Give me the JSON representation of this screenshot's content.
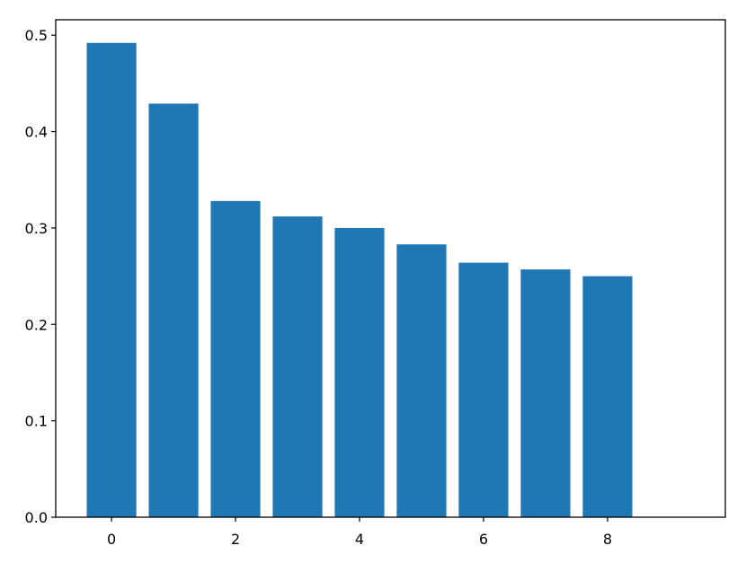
{
  "chart_data": {
    "type": "bar",
    "x": [
      0,
      1,
      2,
      3,
      4,
      5,
      6,
      7,
      8
    ],
    "values": [
      0.492,
      0.429,
      0.328,
      0.312,
      0.3,
      0.283,
      0.264,
      0.257,
      0.25
    ],
    "color": "#1f77b4",
    "xlim": [
      -0.9,
      9.9
    ],
    "xticks": [
      0,
      2,
      4,
      6,
      8
    ],
    "ylim": [
      0,
      0.516
    ],
    "yticks": [
      {
        "value": 0,
        "label": "0.0"
      },
      0.1,
      0.2,
      0.3,
      0.4,
      0.5
    ]
  }
}
